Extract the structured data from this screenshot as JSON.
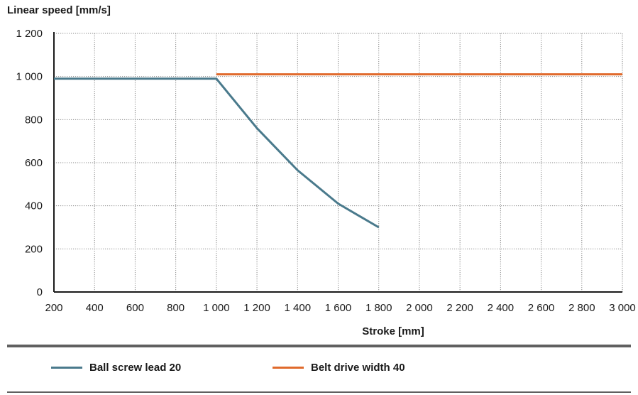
{
  "chart_data": {
    "type": "line",
    "ylabel": "Linear speed [mm/s]",
    "xlabel": "Stroke [mm]",
    "xlim": [
      200,
      3000
    ],
    "ylim": [
      0,
      1200
    ],
    "x_ticks": [
      "200",
      "400",
      "600",
      "800",
      "1 000",
      "1 200",
      "1 400",
      "1 600",
      "1 800",
      "2 000",
      "2 200",
      "2 400",
      "2 600",
      "2 800",
      "3 000"
    ],
    "x_tick_values": [
      200,
      400,
      600,
      800,
      1000,
      1200,
      1400,
      1600,
      1800,
      2000,
      2200,
      2400,
      2600,
      2800,
      3000
    ],
    "y_ticks": [
      "0",
      "200",
      "400",
      "600",
      "800",
      "1 000",
      "1 200"
    ],
    "y_tick_values": [
      0,
      200,
      400,
      600,
      800,
      1000,
      1200
    ],
    "grid": true,
    "legend_position": "bottom",
    "series": [
      {
        "name": "Ball screw lead 20",
        "color": "#4a7a8c",
        "points": [
          [
            200,
            990
          ],
          [
            1000,
            990
          ],
          [
            1200,
            760
          ],
          [
            1400,
            565
          ],
          [
            1600,
            410
          ],
          [
            1800,
            300
          ]
        ]
      },
      {
        "name": "Belt drive width 40",
        "color": "#e06a2c",
        "points": [
          [
            1000,
            1010
          ],
          [
            3000,
            1010
          ]
        ]
      }
    ]
  }
}
